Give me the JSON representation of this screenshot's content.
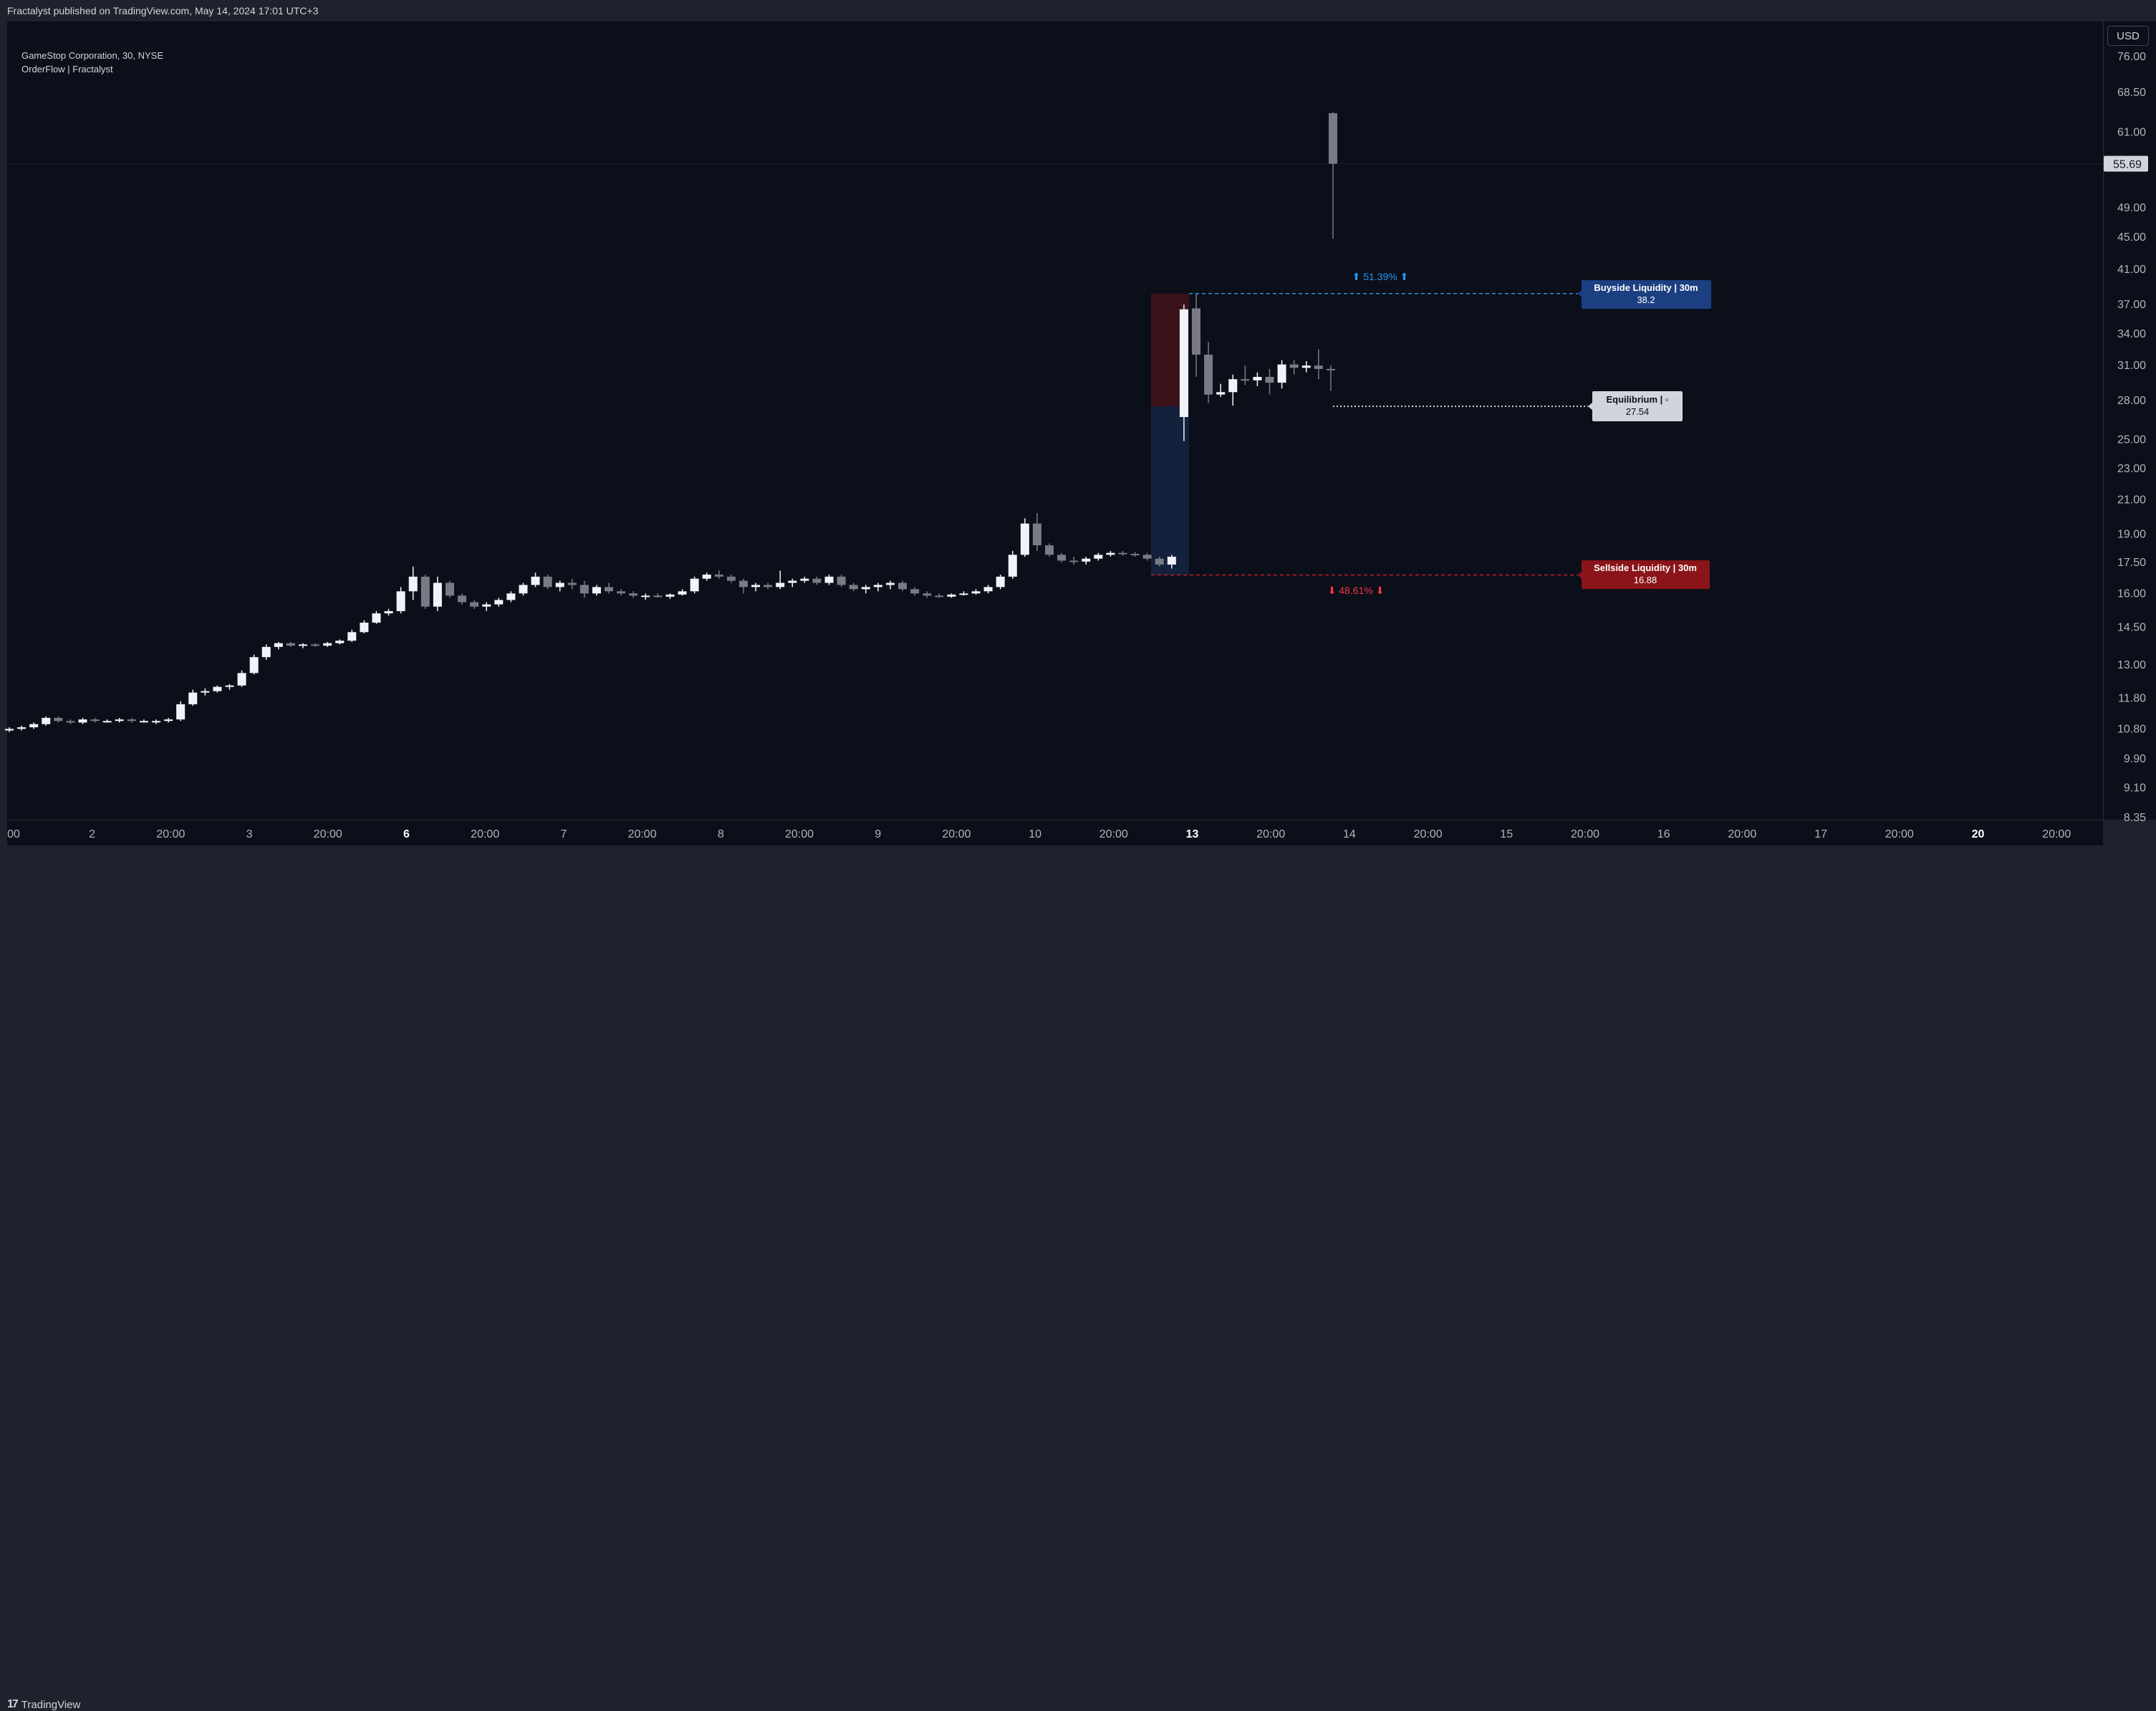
{
  "header": {
    "published": "Fractalyst published on TradingView.com, May 14, 2024 17:01 UTC+3"
  },
  "legend": {
    "symbol": "GameStop Corporation, 30, NYSE",
    "indicator": "OrderFlow | Fractalyst"
  },
  "currency": "USD",
  "footer": {
    "brand": "TradingView",
    "logo_icon": "tradingview-logo-icon"
  },
  "colors": {
    "background": "#0b0f19",
    "bull": "#f0f3fa",
    "bear": "#787b86",
    "buyside": "#1c3f82",
    "sellside": "#8a1419",
    "equilibrium": "#d1d4dc",
    "up_text": "#2196f3",
    "down_text": "#f23645"
  },
  "chart_data": {
    "type": "candlestick",
    "y_scale": "log",
    "ylim": [
      8.35,
      76.0
    ],
    "price_ticks": [
      "76.00",
      "68.50",
      "61.00",
      "55.00",
      "49.00",
      "45.00",
      "41.00",
      "37.00",
      "34.00",
      "31.00",
      "28.00",
      "25.00",
      "23.00",
      "21.00",
      "19.00",
      "17.50",
      "16.00",
      "14.50",
      "13.00",
      "11.80",
      "10.80",
      "9.90",
      "9.10",
      "8.35"
    ],
    "last_price": "55.69",
    "time_ticks": [
      "00",
      "2",
      "20:00",
      "3",
      "20:00",
      "6",
      "20:00",
      "7",
      "20:00",
      "8",
      "20:00",
      "9",
      "20:00",
      "10",
      "20:00",
      "13",
      "20:00",
      "14",
      "20:00",
      "15",
      "20:00",
      "16",
      "20:00",
      "17",
      "20:00",
      "20",
      "20:00"
    ],
    "bold_time_ticks": [
      "6",
      "13",
      "20"
    ],
    "candles": [
      [
        10.75,
        10.85,
        10.7,
        10.8
      ],
      [
        10.8,
        10.9,
        10.75,
        10.85
      ],
      [
        10.85,
        11.0,
        10.8,
        10.95
      ],
      [
        10.95,
        11.2,
        10.9,
        11.15
      ],
      [
        11.15,
        11.2,
        11.0,
        11.05
      ],
      [
        11.05,
        11.1,
        10.95,
        11.0
      ],
      [
        11.0,
        11.15,
        10.95,
        11.1
      ],
      [
        11.1,
        11.15,
        11.0,
        11.05
      ],
      [
        11.05,
        11.1,
        11.0,
        11.05
      ],
      [
        11.05,
        11.15,
        11.0,
        11.1
      ],
      [
        11.1,
        11.15,
        11.0,
        11.05
      ],
      [
        11.05,
        11.1,
        11.0,
        11.05
      ],
      [
        11.05,
        11.1,
        10.95,
        11.05
      ],
      [
        11.05,
        11.15,
        11.0,
        11.1
      ],
      [
        11.1,
        11.7,
        11.05,
        11.6
      ],
      [
        11.6,
        12.1,
        11.55,
        12.0
      ],
      [
        12.0,
        12.15,
        11.9,
        12.05
      ],
      [
        12.05,
        12.25,
        12.0,
        12.2
      ],
      [
        12.2,
        12.3,
        12.1,
        12.25
      ],
      [
        12.25,
        12.8,
        12.2,
        12.7
      ],
      [
        12.7,
        13.4,
        12.65,
        13.3
      ],
      [
        13.3,
        13.8,
        13.2,
        13.7
      ],
      [
        13.7,
        13.9,
        13.6,
        13.85
      ],
      [
        13.85,
        13.9,
        13.7,
        13.75
      ],
      [
        13.75,
        13.85,
        13.65,
        13.8
      ],
      [
        13.8,
        13.85,
        13.7,
        13.75
      ],
      [
        13.75,
        13.9,
        13.7,
        13.85
      ],
      [
        13.85,
        14.0,
        13.8,
        13.95
      ],
      [
        13.95,
        14.4,
        13.9,
        14.3
      ],
      [
        14.3,
        14.8,
        14.25,
        14.7
      ],
      [
        14.7,
        15.2,
        14.65,
        15.1
      ],
      [
        15.1,
        15.3,
        15.0,
        15.2
      ],
      [
        15.2,
        16.3,
        15.1,
        16.1
      ],
      [
        16.1,
        17.3,
        15.7,
        16.8
      ],
      [
        16.8,
        16.9,
        15.3,
        15.4
      ],
      [
        15.4,
        16.8,
        15.2,
        16.5
      ],
      [
        16.5,
        16.6,
        15.8,
        15.9
      ],
      [
        15.9,
        16.0,
        15.5,
        15.6
      ],
      [
        15.6,
        15.7,
        15.3,
        15.4
      ],
      [
        15.4,
        15.6,
        15.2,
        15.5
      ],
      [
        15.5,
        15.8,
        15.4,
        15.7
      ],
      [
        15.7,
        16.1,
        15.6,
        16.0
      ],
      [
        16.0,
        16.5,
        15.9,
        16.4
      ],
      [
        16.4,
        17.0,
        16.3,
        16.8
      ],
      [
        16.8,
        16.9,
        16.2,
        16.3
      ],
      [
        16.3,
        16.6,
        16.1,
        16.5
      ],
      [
        16.5,
        16.7,
        16.2,
        16.4
      ],
      [
        16.4,
        16.6,
        15.8,
        16.0
      ],
      [
        16.0,
        16.4,
        15.9,
        16.3
      ],
      [
        16.3,
        16.5,
        16.0,
        16.1
      ],
      [
        16.1,
        16.2,
        15.9,
        16.0
      ],
      [
        16.0,
        16.1,
        15.8,
        15.9
      ],
      [
        15.9,
        16.0,
        15.7,
        15.9
      ],
      [
        15.9,
        16.0,
        15.8,
        15.85
      ],
      [
        15.85,
        16.0,
        15.75,
        15.95
      ],
      [
        15.95,
        16.2,
        15.9,
        16.1
      ],
      [
        16.1,
        16.8,
        16.0,
        16.7
      ],
      [
        16.7,
        17.0,
        16.6,
        16.9
      ],
      [
        16.9,
        17.1,
        16.7,
        16.8
      ],
      [
        16.8,
        16.9,
        16.5,
        16.6
      ],
      [
        16.6,
        16.7,
        16.0,
        16.3
      ],
      [
        16.3,
        16.5,
        16.1,
        16.4
      ],
      [
        16.4,
        16.5,
        16.2,
        16.3
      ],
      [
        16.3,
        17.1,
        16.2,
        16.5
      ],
      [
        16.5,
        16.7,
        16.3,
        16.6
      ],
      [
        16.6,
        16.8,
        16.5,
        16.7
      ],
      [
        16.7,
        16.8,
        16.4,
        16.5
      ],
      [
        16.5,
        16.9,
        16.4,
        16.8
      ],
      [
        16.8,
        16.9,
        16.3,
        16.4
      ],
      [
        16.4,
        16.5,
        16.1,
        16.2
      ],
      [
        16.2,
        16.4,
        16.0,
        16.3
      ],
      [
        16.3,
        16.5,
        16.1,
        16.4
      ],
      [
        16.4,
        16.6,
        16.2,
        16.5
      ],
      [
        16.5,
        16.6,
        16.1,
        16.2
      ],
      [
        16.2,
        16.3,
        15.9,
        16.0
      ],
      [
        16.0,
        16.1,
        15.8,
        15.9
      ],
      [
        15.9,
        16.0,
        15.8,
        15.85
      ],
      [
        15.85,
        16.0,
        15.8,
        15.95
      ],
      [
        15.95,
        16.1,
        15.9,
        16.0
      ],
      [
        16.0,
        16.2,
        15.95,
        16.1
      ],
      [
        16.1,
        16.4,
        16.0,
        16.3
      ],
      [
        16.3,
        16.9,
        16.2,
        16.8
      ],
      [
        16.8,
        18.1,
        16.7,
        17.9
      ],
      [
        17.9,
        19.9,
        17.8,
        19.6
      ],
      [
        19.6,
        20.2,
        18.1,
        18.4
      ],
      [
        18.4,
        18.5,
        17.8,
        17.9
      ],
      [
        17.9,
        18.0,
        17.5,
        17.6
      ],
      [
        17.6,
        17.8,
        17.4,
        17.55
      ],
      [
        17.55,
        17.8,
        17.4,
        17.7
      ],
      [
        17.7,
        18.0,
        17.6,
        17.9
      ],
      [
        17.9,
        18.1,
        17.8,
        18.0
      ],
      [
        18.0,
        18.1,
        17.85,
        17.95
      ],
      [
        17.95,
        18.05,
        17.8,
        17.9
      ],
      [
        17.9,
        18.0,
        17.6,
        17.7
      ],
      [
        17.7,
        17.8,
        17.3,
        17.4
      ],
      [
        17.4,
        17.9,
        17.2,
        17.8
      ],
      [
        26.7,
        37.0,
        24.9,
        36.5
      ],
      [
        36.6,
        38.2,
        30.0,
        32.0
      ],
      [
        32.0,
        33.2,
        27.8,
        28.5
      ],
      [
        28.5,
        29.4,
        28.3,
        28.7
      ],
      [
        28.7,
        30.2,
        27.6,
        29.8
      ],
      [
        29.8,
        31.0,
        29.3,
        29.7
      ],
      [
        29.7,
        30.4,
        29.2,
        30.0
      ],
      [
        30.0,
        30.7,
        28.5,
        29.5
      ],
      [
        29.5,
        31.5,
        29.0,
        31.1
      ],
      [
        31.1,
        31.5,
        30.2,
        30.8
      ],
      [
        30.8,
        31.4,
        30.4,
        31.0
      ],
      [
        31.0,
        32.5,
        29.8,
        30.7
      ],
      [
        30.7,
        31.0,
        28.8,
        30.6
      ],
      [
        64.5,
        64.7,
        44.8,
        55.69
      ]
    ],
    "bull_candle_indices": [
      96
    ],
    "zones": [
      {
        "name": "premium",
        "from": 27.54,
        "to": 38.2,
        "color": "#3b111a"
      },
      {
        "name": "discount",
        "from": 16.88,
        "to": 27.54,
        "color": "#14213d"
      }
    ],
    "levels": {
      "buyside": {
        "title": "Buyside  Liquidity  |  30m",
        "value": "38.2",
        "price": 38.2
      },
      "equilibrium": {
        "title": "Equilibrium  |  ▫",
        "value": "27.54",
        "price": 27.54
      },
      "sellside": {
        "title": "Sellside  Liquidity  |  30m",
        "value": "16.88",
        "price": 16.88
      }
    },
    "annotations": {
      "up": "⬆  51.39%  ⬆",
      "down": "⬇  48.61%  ⬇"
    }
  }
}
